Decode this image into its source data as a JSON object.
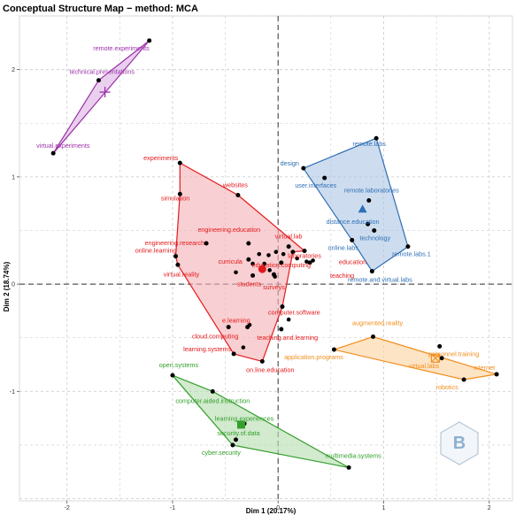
{
  "chart_data": {
    "type": "scatter",
    "title": "Conceptual Structure Map − method: MCA",
    "xlabel": "Dim 1 (20.17%)",
    "ylabel": "Dim 2 (18.74%)",
    "xlim": [
      -2.45,
      2.22
    ],
    "ylim": [
      -2.02,
      2.5
    ],
    "xticks": [
      -2,
      -1,
      0,
      1,
      2
    ],
    "yticks": [
      -1,
      0,
      1,
      2
    ],
    "grid": true,
    "reference_lines": {
      "x": 0,
      "y": 0,
      "style": "dashed"
    },
    "clusters": [
      {
        "id": "purple",
        "color": "#9B30A8",
        "fill": "#DDB3E3",
        "centroid": {
          "x": -1.64,
          "y": 1.79,
          "marker": "plus"
        },
        "hull": [
          "remote.experiments",
          "technical.presentations",
          "virtual.experiments"
        ],
        "points": [
          {
            "label": "remote.experiments",
            "x": -1.22,
            "y": 2.27,
            "anchor": "end",
            "dx": 0,
            "dy": 11
          },
          {
            "label": "technical.presentations",
            "x": -1.7,
            "y": 1.9,
            "anchor": "start",
            "dx": -33,
            "dy": -7
          },
          {
            "label": "virtual.experiments",
            "x": -2.13,
            "y": 1.22,
            "anchor": "start",
            "dx": -19,
            "dy": -6
          }
        ]
      },
      {
        "id": "blue",
        "color": "#2F6FB5",
        "fill": "#AFC8E5",
        "centroid": {
          "x": 0.8,
          "y": 0.7,
          "marker": "triangle"
        },
        "hull": [
          "remote.labs",
          "remote.labs.1",
          "remote.and.virtual.labs",
          "online.labs",
          "design"
        ],
        "points": [
          {
            "label": "remote.labs",
            "x": 0.93,
            "y": 1.36,
            "anchor": "middle",
            "dx": -8,
            "dy": 9
          },
          {
            "label": "design",
            "x": 0.24,
            "y": 1.08,
            "anchor": "end",
            "dx": -5,
            "dy": -3
          },
          {
            "label": "user.interfaces",
            "x": 0.44,
            "y": 0.99,
            "anchor": "middle",
            "dx": -10,
            "dy": 11
          },
          {
            "label": "remote.laboratories",
            "x": 0.86,
            "y": 0.78,
            "anchor": "middle",
            "dx": 3,
            "dy": -9
          },
          {
            "label": "distance.education",
            "x": 0.85,
            "y": 0.56,
            "anchor": "middle",
            "dx": -17,
            "dy": 0
          },
          {
            "label": "technology",
            "x": 0.91,
            "y": 0.5,
            "anchor": "middle",
            "dx": 1,
            "dy": 11
          },
          {
            "label": "online.labs",
            "x": 0.7,
            "y": 0.41,
            "anchor": "middle",
            "dx": -10,
            "dy": 11
          },
          {
            "label": "remote.labs.1",
            "x": 1.23,
            "y": 0.35,
            "anchor": "middle",
            "dx": 4,
            "dy": 11
          },
          {
            "label": "remote.and.virtual.labs",
            "x": 0.89,
            "y": 0.12,
            "anchor": "middle",
            "dx": 9,
            "dy": 12
          }
        ]
      },
      {
        "id": "red",
        "color": "#E31A1C",
        "fill": "#F4B2B6",
        "centroid": {
          "x": -0.15,
          "y": 0.14,
          "marker": "circle"
        },
        "hull": [
          "experiments",
          "websites",
          "laboratories",
          "education",
          "computer.software",
          "on.line.education",
          "learning.systems",
          "virtual.reality",
          "online.learning",
          "simulation"
        ],
        "points": [
          {
            "label": "experiments",
            "x": -0.93,
            "y": 1.13,
            "anchor": "end",
            "dx": -2,
            "dy": -3
          },
          {
            "label": "websites",
            "x": -0.38,
            "y": 0.83,
            "anchor": "middle",
            "dx": -3,
            "dy": -9
          },
          {
            "label": "simulation",
            "x": -0.93,
            "y": 0.84,
            "anchor": "end",
            "dx": 11,
            "dy": 7
          },
          {
            "label": "engineering.education",
            "x": -0.28,
            "y": 0.38,
            "anchor": "middle",
            "dx": -22,
            "dy": -13
          },
          {
            "label": "engineering.research",
            "x": -0.68,
            "y": 0.38,
            "anchor": "end",
            "dx": -2,
            "dy": 2
          },
          {
            "label": "virtual.lab",
            "x": 0.1,
            "y": 0.35,
            "anchor": "middle",
            "dx": 0,
            "dy": -9
          },
          {
            "label": "laboratories",
            "x": 0.25,
            "y": 0.31,
            "anchor": "middle",
            "dx": 0,
            "dy": 8
          },
          {
            "label": "online.learning",
            "x": -0.97,
            "y": 0.26,
            "anchor": "end",
            "dx": 1,
            "dy": -4
          },
          {
            "label": "education",
            "x": 0.14,
            "y": 0.3,
            "anchor": "start",
            "dx": 52,
            "dy": 14
          },
          {
            "label": "teaching",
            "x": 0.3,
            "y": 0.2,
            "anchor": "start",
            "dx": 23,
            "dy": 17
          },
          {
            "label": "curricula",
            "x": -0.28,
            "y": 0.23,
            "anchor": "end",
            "dx": -7,
            "dy": 5
          },
          {
            "label": "education.computing",
            "x": 0.03,
            "y": 0.2,
            "anchor": "middle",
            "dx": 0,
            "dy": 5
          },
          {
            "label": "virtual.reality",
            "x": -0.95,
            "y": 0.18,
            "anchor": "middle",
            "dx": 4,
            "dy": 13
          },
          {
            "label": "students",
            "x": -0.24,
            "y": 0.08,
            "anchor": "middle",
            "dx": -4,
            "dy": 12
          },
          {
            "label": "surveys",
            "x": -0.04,
            "y": 0.09,
            "anchor": "middle",
            "dx": 0,
            "dy": 17
          },
          {
            "label": "computer.software",
            "x": 0.04,
            "y": -0.21,
            "anchor": "start",
            "dx": -16,
            "dy": 9
          },
          {
            "label": "e.learning",
            "x": -0.29,
            "y": -0.4,
            "anchor": "end",
            "dx": 3,
            "dy": -5
          },
          {
            "label": "cloud.computing",
            "x": -0.47,
            "y": -0.4,
            "anchor": "middle",
            "dx": -15,
            "dy": 13
          },
          {
            "label": "teaching.and.learning",
            "x": 0.03,
            "y": -0.42,
            "anchor": "middle",
            "dx": 7,
            "dy": 12
          },
          {
            "label": "learning.systems",
            "x": -0.42,
            "y": -0.65,
            "anchor": "end",
            "dx": -3,
            "dy": -3
          },
          {
            "label": "on.line.education",
            "x": -0.15,
            "y": -0.72,
            "anchor": "middle",
            "dx": 9,
            "dy": 12
          }
        ],
        "extra_points": [
          {
            "x": -0.09,
            "y": 0.27
          },
          {
            "x": -0.02,
            "y": 0.3
          },
          {
            "x": 0.05,
            "y": 0.28
          },
          {
            "x": -0.24,
            "y": 0.19
          },
          {
            "x": -0.13,
            "y": 0.19
          },
          {
            "x": -0.08,
            "y": 0.13
          },
          {
            "x": -0.03,
            "y": 0.07
          },
          {
            "x": 0.18,
            "y": 0.24
          },
          {
            "x": 0.27,
            "y": 0.21
          },
          {
            "x": 0.33,
            "y": 0.22
          },
          {
            "x": -0.18,
            "y": 0.28
          },
          {
            "x": -0.27,
            "y": -0.38
          },
          {
            "x": -0.33,
            "y": -0.59
          },
          {
            "x": 0.1,
            "y": -0.33
          },
          {
            "x": -0.4,
            "y": 0.11
          }
        ]
      },
      {
        "id": "orange",
        "color": "#F28E1C",
        "fill": "#FBD3A1",
        "centroid": {
          "x": 1.49,
          "y": -0.69,
          "marker": "square-x"
        },
        "hull": [
          "augmented.reality",
          "internet",
          "robotics",
          "application.programs"
        ],
        "points": [
          {
            "label": "augmented.reality",
            "x": 0.9,
            "y": -0.49,
            "anchor": "middle",
            "dx": 5,
            "dy": -13
          },
          {
            "label": "personnel.training",
            "x": 1.53,
            "y": -0.58,
            "anchor": "middle",
            "dx": 16,
            "dy": 11
          },
          {
            "label": "application.programs",
            "x": 0.53,
            "y": -0.61,
            "anchor": "middle",
            "dx": -23,
            "dy": 11
          },
          {
            "label": "virtual.labs",
            "x": 1.55,
            "y": -0.69,
            "anchor": "middle",
            "dx": -20,
            "dy": 11
          },
          {
            "label": "internet",
            "x": 2.07,
            "y": -0.84,
            "anchor": "end",
            "dx": -2,
            "dy": -5
          },
          {
            "label": "robotics",
            "x": 1.76,
            "y": -0.89,
            "anchor": "middle",
            "dx": -19,
            "dy": 11
          }
        ]
      },
      {
        "id": "green",
        "color": "#33A02C",
        "fill": "#B7DDB0",
        "centroid": {
          "x": -0.35,
          "y": -1.31,
          "marker": "square"
        },
        "hull": [
          "open.systems",
          "computer.aided.instruction",
          "multimedia.systems",
          "cyber.security"
        ],
        "points": [
          {
            "label": "open.systems",
            "x": -1.0,
            "y": -0.85,
            "anchor": "middle",
            "dx": 7,
            "dy": -9
          },
          {
            "label": "computer.aided.instruction",
            "x": -0.62,
            "y": -1.0,
            "anchor": "middle",
            "dx": 0,
            "dy": 13
          },
          {
            "label": "learning.experiences",
            "x": -0.32,
            "y": -1.3,
            "anchor": "middle",
            "dx": 0,
            "dy": -3
          },
          {
            "label": "security.of.data",
            "x": -0.4,
            "y": -1.45,
            "anchor": "middle",
            "dx": 3,
            "dy": -5
          },
          {
            "label": "cyber.security",
            "x": -0.43,
            "y": -1.5,
            "anchor": "middle",
            "dx": -13,
            "dy": 11
          },
          {
            "label": "multimedia.systems",
            "x": 0.67,
            "y": -1.71,
            "anchor": "middle",
            "dx": 5,
            "dy": -11
          }
        ]
      }
    ]
  }
}
